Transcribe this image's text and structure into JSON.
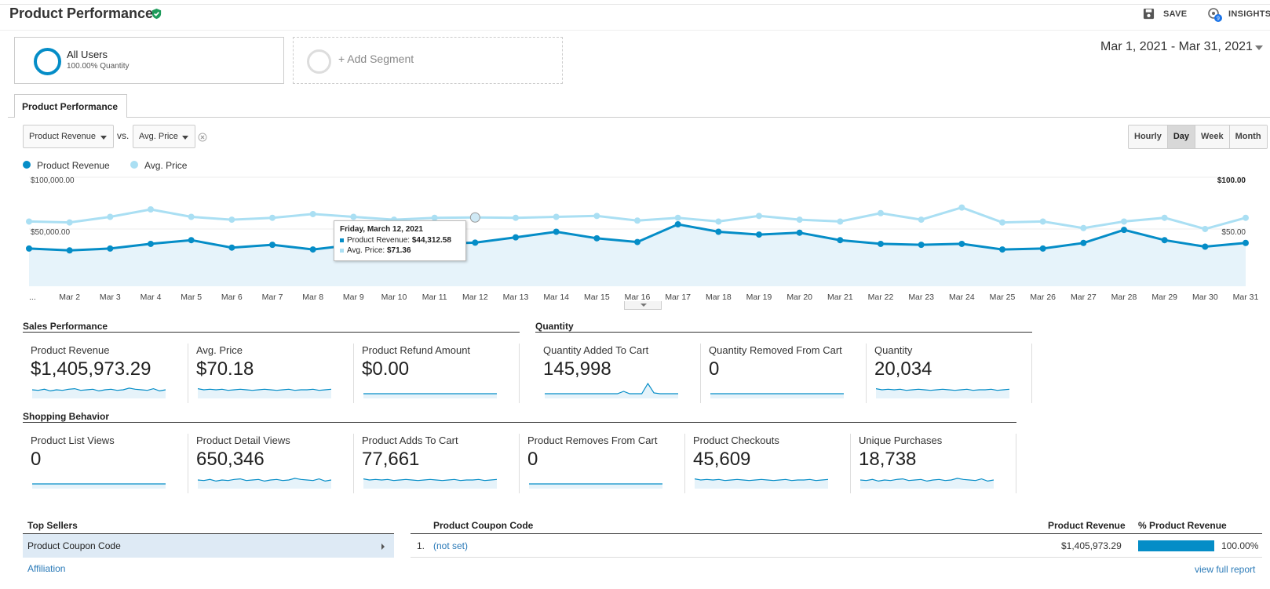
{
  "header": {
    "title": "Product Performance",
    "save_label": "SAVE",
    "insights_label": "INSIGHTS",
    "insights_badge": "9"
  },
  "segments": {
    "all_users": {
      "name": "All Users",
      "sub": "100.00% Quantity"
    },
    "add_label": "+ Add Segment"
  },
  "date_range": "Mar 1, 2021 - Mar 31, 2021",
  "tab_label": "Product Performance",
  "selectors": {
    "primary": "Product Revenue",
    "vs": "vs.",
    "secondary": "Avg. Price"
  },
  "granularity": [
    "Hourly",
    "Day",
    "Week",
    "Month"
  ],
  "granularity_active": "Day",
  "legend": [
    {
      "label": "Product Revenue",
      "color": "#058dc7"
    },
    {
      "label": "Avg. Price",
      "color": "#aadff3"
    }
  ],
  "tooltip": {
    "date": "Friday, March 12, 2021",
    "revenue_label": "Product Revenue:",
    "revenue_value": "$44,312.58",
    "price_label": "Avg. Price:",
    "price_value": "$71.36"
  },
  "chart_data": {
    "type": "line",
    "x": [
      "...",
      "Mar 2",
      "Mar 3",
      "Mar 4",
      "Mar 5",
      "Mar 6",
      "Mar 7",
      "Mar 8",
      "Mar 9",
      "Mar 10",
      "Mar 11",
      "Mar 12",
      "Mar 13",
      "Mar 14",
      "Mar 15",
      "Mar 16",
      "Mar 17",
      "Mar 18",
      "Mar 19",
      "Mar 20",
      "Mar 21",
      "Mar 22",
      "Mar 23",
      "Mar 24",
      "Mar 25",
      "Mar 26",
      "Mar 27",
      "Mar 28",
      "Mar 29",
      "Mar 30",
      "Mar 31"
    ],
    "series": [
      {
        "name": "Product Revenue",
        "axis": "left",
        "values": [
          38000,
          36000,
          38000,
          43000,
          47000,
          39000,
          42000,
          37000,
          42000,
          45000,
          43000,
          44312.58,
          50000,
          56000,
          49000,
          45000,
          64000,
          56000,
          53000,
          55000,
          47000,
          43000,
          42000,
          43000,
          37000,
          38000,
          44000,
          58000,
          47000,
          40000,
          44000
        ]
      },
      {
        "name": "Avg. Price",
        "axis": "right",
        "values": [
          67,
          66,
          72,
          80,
          72,
          69,
          71,
          75,
          72,
          69,
          71,
          71.36,
          71,
          72,
          73,
          68,
          71,
          67,
          73,
          69,
          67,
          76,
          69,
          82,
          66,
          67,
          60,
          67,
          71,
          59,
          71
        ]
      }
    ],
    "left_ticks": [
      "$100,000.00",
      "$50,000.00"
    ],
    "right_ticks": [
      "$100.00",
      "$50.00"
    ],
    "ylim_left": [
      0,
      100000
    ],
    "ylim_right": [
      0,
      100
    ]
  },
  "sections": {
    "sales": "Sales Performance",
    "quantity": "Quantity",
    "shopping": "Shopping Behavior"
  },
  "cards": {
    "row1": [
      {
        "label": "Product Revenue",
        "value": "$1,405,973.29"
      },
      {
        "label": "Avg. Price",
        "value": "$70.18"
      },
      {
        "label": "Product Refund Amount",
        "value": "$0.00"
      },
      {
        "label": "Quantity Added To Cart",
        "value": "145,998"
      },
      {
        "label": "Quantity Removed From Cart",
        "value": "0"
      },
      {
        "label": "Quantity",
        "value": "20,034"
      }
    ],
    "row2": [
      {
        "label": "Product List Views",
        "value": "0"
      },
      {
        "label": "Product Detail Views",
        "value": "650,346"
      },
      {
        "label": "Product Adds To Cart",
        "value": "77,661"
      },
      {
        "label": "Product Removes From Cart",
        "value": "0"
      },
      {
        "label": "Product Checkouts",
        "value": "45,609"
      },
      {
        "label": "Unique Purchases",
        "value": "18,738"
      }
    ]
  },
  "table": {
    "left_header": "Top Sellers",
    "selected_item": "Product Coupon Code",
    "other_item": "Affiliation",
    "right_header": "Product Coupon Code",
    "col_revenue": "Product Revenue",
    "col_pct": "% Product Revenue",
    "row": {
      "index": "1.",
      "value": "(not set)",
      "revenue": "$1,405,973.29",
      "pct": "100.00%",
      "pct_fraction": 1.0
    },
    "full_report": "view full report"
  }
}
